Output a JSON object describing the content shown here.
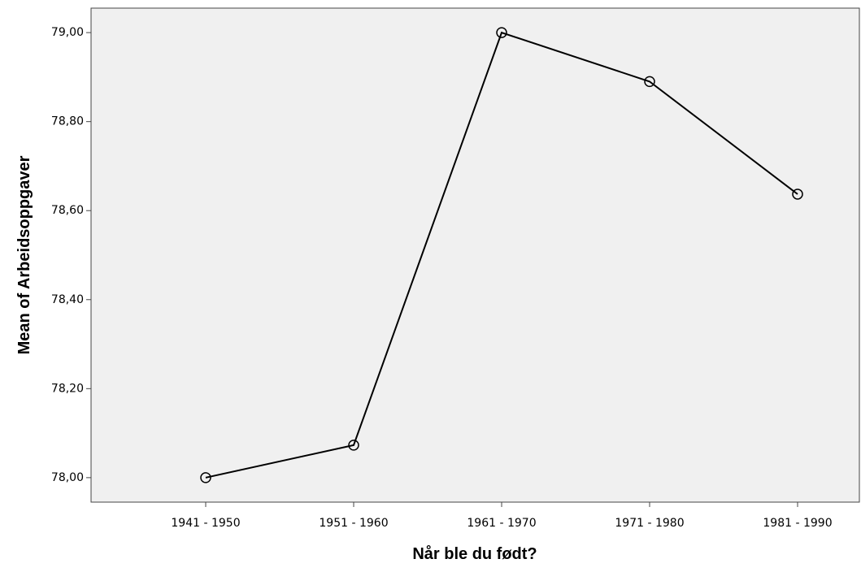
{
  "chart_data": {
    "type": "line",
    "x_label": "Når ble du født?",
    "y_label": "Mean of Arbeidsoppgaver",
    "categories": [
      "1941 - 1950",
      "1951 - 1960",
      "1961 - 1970",
      "1971 - 1980",
      "1981 - 1990"
    ],
    "series": [
      {
        "name": "Mean of Arbeidsoppgaver",
        "color": "#000000",
        "values": [
          78.0,
          78.073,
          79.0,
          78.89,
          78.637
        ]
      }
    ],
    "ylim": [
      77.945,
      79.055
    ],
    "yticks": [
      {
        "value": 78.0,
        "label": "78,00"
      },
      {
        "value": 78.2,
        "label": "78,20"
      },
      {
        "value": 78.4,
        "label": "78,40"
      },
      {
        "value": 78.6,
        "label": "78,60"
      },
      {
        "value": 78.8,
        "label": "78,80"
      },
      {
        "value": 79.0,
        "label": "79,00"
      }
    ],
    "grid": false
  }
}
